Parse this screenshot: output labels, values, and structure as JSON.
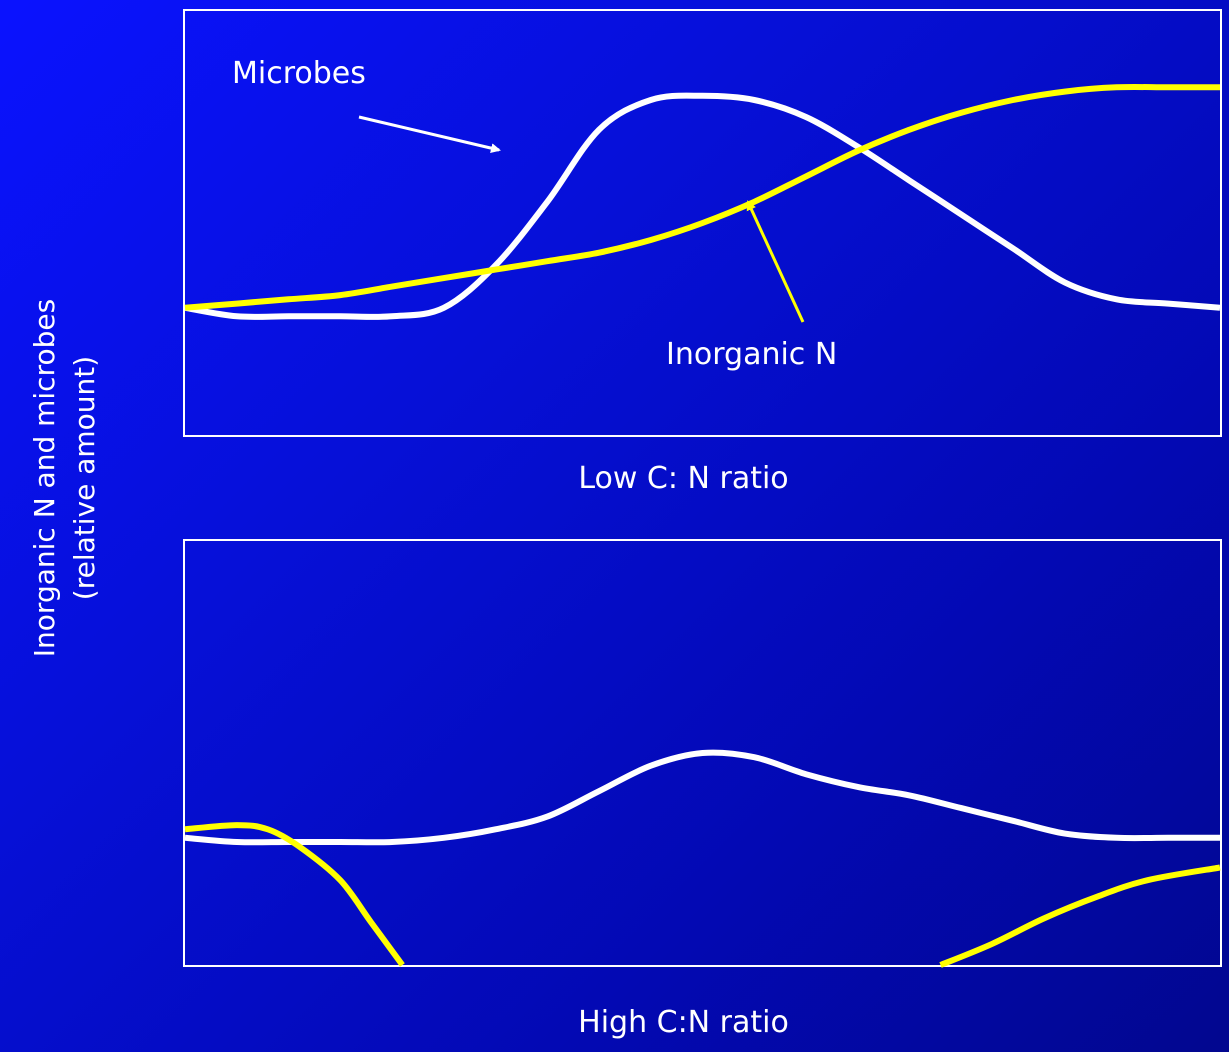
{
  "ylabel": {
    "line1": "Inorganic N and microbes",
    "line2": "(relative amount)"
  },
  "colors": {
    "microbes": "#ffffff",
    "inorganic_n": "#ffff00",
    "background": "#0610d8"
  },
  "chart_data": [
    {
      "type": "line",
      "caption": "Low C: N ratio",
      "annotations": [
        "Microbes",
        "Inorganic N"
      ],
      "ylabel": "Inorganic N and microbes (relative amount)",
      "x": [
        0,
        5,
        10,
        15,
        20,
        25,
        30,
        35,
        40,
        45,
        50,
        55,
        60,
        65,
        70,
        75,
        80,
        85,
        90,
        95,
        100
      ],
      "series": [
        {
          "name": "Microbes",
          "color": "#ffffff",
          "values": [
            30,
            28,
            28,
            28,
            28,
            30,
            40,
            55,
            72,
            79,
            80,
            79,
            75,
            68,
            60,
            52,
            44,
            36,
            32,
            31,
            30
          ]
        },
        {
          "name": "Inorganic N",
          "color": "#ffff00",
          "values": [
            30,
            31,
            32,
            33,
            35,
            37,
            39,
            41,
            43,
            46,
            50,
            55,
            61,
            67,
            72,
            76,
            79,
            81,
            82,
            82,
            82
          ]
        }
      ],
      "ylim": [
        0,
        100
      ],
      "grid": false
    },
    {
      "type": "line",
      "caption": "High C:N ratio",
      "ylabel": "Inorganic N and microbes (relative amount)",
      "x": [
        0,
        5,
        10,
        15,
        20,
        25,
        30,
        35,
        40,
        45,
        50,
        55,
        60,
        65,
        70,
        75,
        80,
        85,
        90,
        95,
        100
      ],
      "series": [
        {
          "name": "Microbes",
          "color": "#ffffff",
          "values": [
            30,
            29,
            29,
            29,
            29,
            30,
            32,
            35,
            41,
            47,
            50,
            49,
            45,
            42,
            40,
            37,
            34,
            31,
            30,
            30,
            30
          ]
        },
        {
          "name": "Inorganic N",
          "color": "#ffff00",
          "segments": [
            {
              "x": [
                0,
                5,
                8,
                11,
                15,
                18,
                21
              ],
              "values": [
                32,
                33,
                32,
                28,
                20,
                10,
                0
              ]
            },
            {
              "x": [
                73,
                78,
                83,
                88,
                93,
                100
              ],
              "values": [
                0,
                5,
                11,
                16,
                20,
                23
              ]
            }
          ]
        }
      ],
      "ylim": [
        0,
        100
      ],
      "grid": false
    }
  ]
}
